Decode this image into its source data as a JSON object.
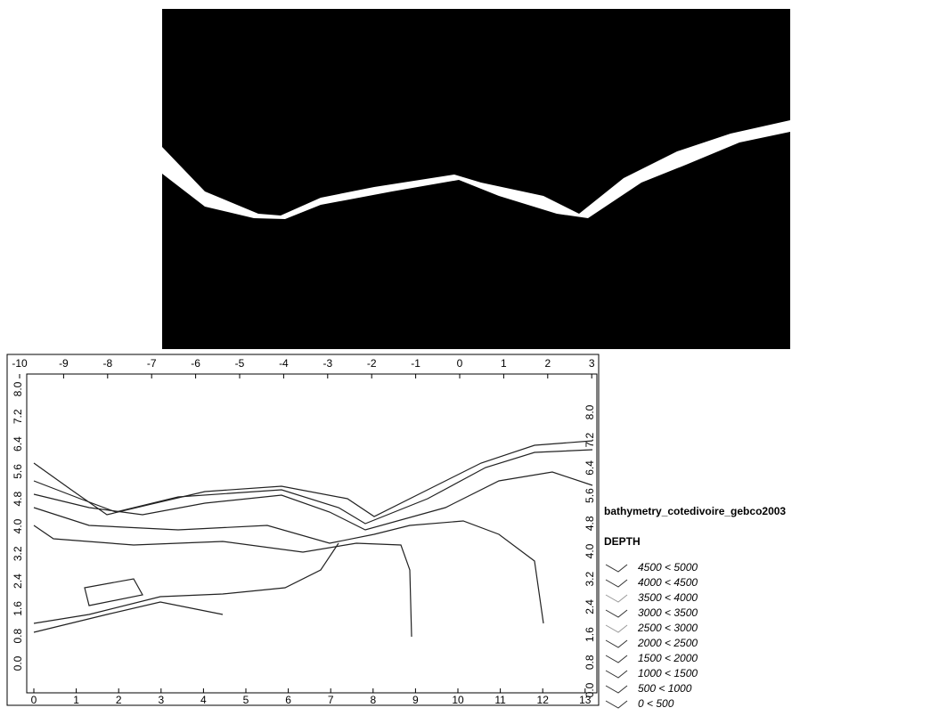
{
  "map": {
    "top_ticks": [
      "-10",
      "-9",
      "-8",
      "-7",
      "-6",
      "-5",
      "-4",
      "-3",
      "-2",
      "-1",
      "0",
      "1",
      "2",
      "3"
    ],
    "bottom_ticks": [
      "0",
      "1",
      "2",
      "3",
      "4",
      "5",
      "6",
      "7",
      "8",
      "9",
      "10",
      "11",
      "12",
      "13"
    ],
    "left_ticks": [
      "8.0",
      "7.2",
      "6.4",
      "5.6",
      "4.8",
      "4.0",
      "3.2",
      "2.4",
      "1.6",
      "0.8",
      "0.0"
    ],
    "right_ticks": [
      "8.0",
      "7.2",
      "6.4",
      "5.6",
      "4.8",
      "4.0",
      "3.2",
      "2.4",
      "1.6",
      "0.8",
      "0.0"
    ],
    "legend": {
      "title": "bathymetry_cotedivoire_gebco2003",
      "field": "DEPTH",
      "items": [
        "4500 < 5000",
        "4000 < 4500",
        "3500 < 4000",
        "3000 < 3500",
        "2500 < 3000",
        "2000 < 2500",
        "1500 < 2000",
        "1000 < 1500",
        "500 < 1000",
        "0 < 500"
      ]
    }
  }
}
